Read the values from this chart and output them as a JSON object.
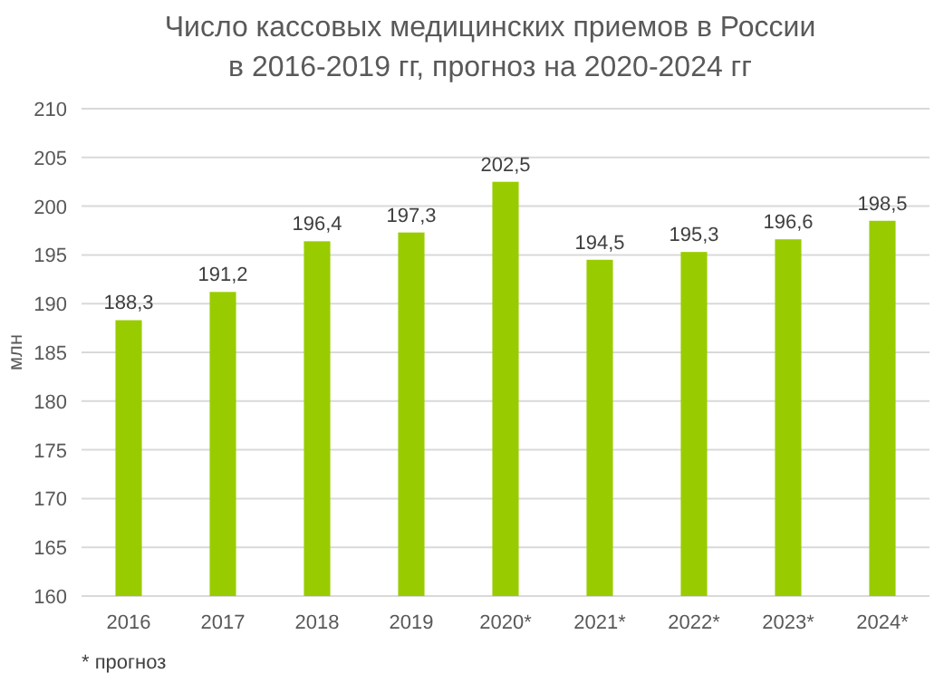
{
  "chart_data": {
    "type": "bar",
    "title": "Число кассовых медицинских приемов в России\nв 2016-2019 гг, прогноз на 2020-2024 гг",
    "ylabel": "млн",
    "categories": [
      "2016",
      "2017",
      "2018",
      "2019",
      "2020*",
      "2021*",
      "2022*",
      "2023*",
      "2024*"
    ],
    "values": [
      188.3,
      191.2,
      196.4,
      197.3,
      202.5,
      194.5,
      195.3,
      196.6,
      198.5
    ],
    "value_labels": [
      "188,3",
      "191,2",
      "196,4",
      "197,3",
      "202,5",
      "194,5",
      "195,3",
      "196,6",
      "198,5"
    ],
    "color": "#99cc00",
    "ylim": [
      160,
      210
    ],
    "yticks": [
      160,
      165,
      170,
      175,
      180,
      185,
      190,
      195,
      200,
      205,
      210
    ],
    "grid": "y",
    "annotations": [
      "* прогноз"
    ]
  }
}
